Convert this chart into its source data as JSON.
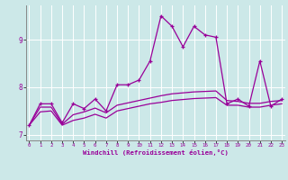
{
  "xlabel": "Windchill (Refroidissement éolien,°C)",
  "x": [
    0,
    1,
    2,
    3,
    4,
    5,
    6,
    7,
    8,
    9,
    10,
    11,
    12,
    13,
    14,
    15,
    16,
    17,
    18,
    19,
    20,
    21,
    22,
    23
  ],
  "y_main": [
    7.2,
    7.65,
    7.65,
    7.25,
    7.65,
    7.55,
    7.75,
    7.5,
    8.05,
    8.05,
    8.15,
    8.55,
    9.5,
    9.28,
    8.85,
    9.28,
    9.1,
    9.05,
    7.65,
    7.75,
    7.6,
    8.55,
    7.6,
    7.75
  ],
  "y_lower": [
    7.2,
    7.48,
    7.5,
    7.2,
    7.3,
    7.35,
    7.43,
    7.35,
    7.5,
    7.55,
    7.6,
    7.65,
    7.68,
    7.72,
    7.74,
    7.76,
    7.77,
    7.78,
    7.62,
    7.62,
    7.58,
    7.58,
    7.62,
    7.65
  ],
  "y_upper": [
    7.2,
    7.58,
    7.58,
    7.22,
    7.42,
    7.48,
    7.56,
    7.46,
    7.62,
    7.67,
    7.72,
    7.77,
    7.82,
    7.86,
    7.88,
    7.9,
    7.91,
    7.92,
    7.72,
    7.7,
    7.66,
    7.66,
    7.7,
    7.72
  ],
  "line_color": "#990099",
  "bg_color": "#cce8e8",
  "grid_color": "#ffffff",
  "ylim": [
    6.88,
    9.72
  ],
  "yticks": [
    7,
    8,
    9
  ],
  "xlim": [
    -0.3,
    23.3
  ],
  "fig_width": 3.2,
  "fig_height": 2.0,
  "dpi": 100
}
